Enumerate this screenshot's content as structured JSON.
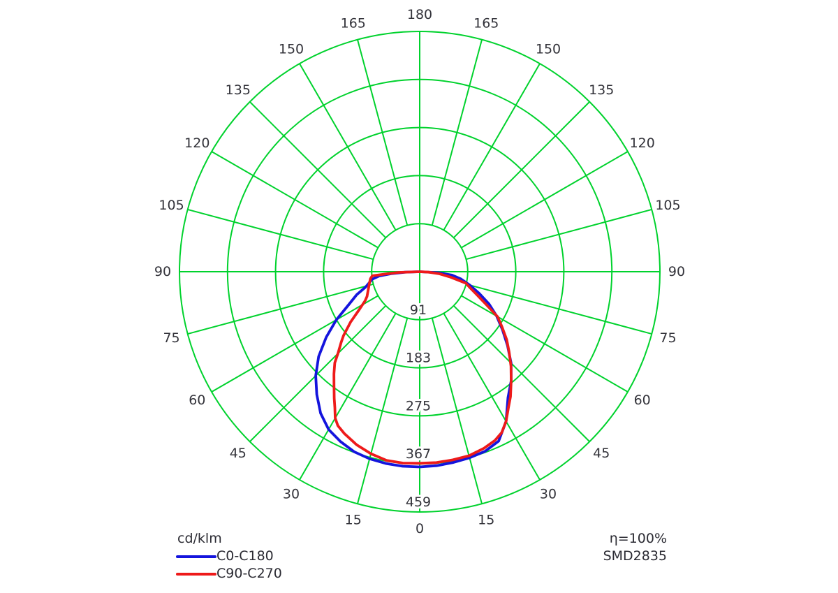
{
  "legend": {
    "unit_label": "cd/klm",
    "items": [
      {
        "label": "C0-C180",
        "color": "#1414dd"
      },
      {
        "label": "C90-C270",
        "color": "#ee1a1a"
      }
    ]
  },
  "footer_right": {
    "line1": "η=100%",
    "line2": "SMD2835"
  },
  "chart_data": {
    "type": "polar-photometric",
    "title": "",
    "unit": "cd/klm",
    "grid_color": "#00d22d",
    "label_color": "#33333a",
    "grid_on": true,
    "legend_position": "bottom-left",
    "angle_step_deg": 15,
    "angle_labels": [
      0,
      15,
      30,
      45,
      60,
      75,
      90,
      105,
      120,
      135,
      150,
      165,
      180
    ],
    "ring_values": [
      91,
      183,
      275,
      367,
      459
    ],
    "radial_max": 459,
    "center": {
      "x": 601,
      "y": 389
    },
    "outer_radius_px": 344,
    "angle_label_radius_px": 368,
    "series": [
      {
        "name": "C0-C180",
        "color": "#1414dd",
        "points": [
          [
            -90,
            0
          ],
          [
            -88,
            28
          ],
          [
            -86,
            55
          ],
          [
            -84,
            78
          ],
          [
            -81,
            92
          ],
          [
            -78,
            98
          ],
          [
            -74,
            108
          ],
          [
            -70,
            128
          ],
          [
            -65,
            150
          ],
          [
            -60,
            184
          ],
          [
            -55,
            218
          ],
          [
            -50,
            252
          ],
          [
            -45,
            281
          ],
          [
            -40,
            306
          ],
          [
            -35,
            330
          ],
          [
            -30,
            348
          ],
          [
            -25,
            358
          ],
          [
            -20,
            366
          ],
          [
            -15,
            370
          ],
          [
            -10,
            372
          ],
          [
            -5,
            373
          ],
          [
            0,
            373
          ],
          [
            5,
            372
          ],
          [
            10,
            370
          ],
          [
            15,
            368
          ],
          [
            20,
            365
          ],
          [
            25,
            357
          ],
          [
            30,
            330
          ],
          [
            35,
            294
          ],
          [
            40,
            272
          ],
          [
            45,
            247
          ],
          [
            50,
            219
          ],
          [
            55,
            193
          ],
          [
            60,
            170
          ],
          [
            65,
            146
          ],
          [
            70,
            121
          ],
          [
            75,
            99
          ],
          [
            80,
            80
          ],
          [
            84,
            62
          ],
          [
            87,
            35
          ],
          [
            90,
            0
          ]
        ]
      },
      {
        "name": "C90-C270",
        "color": "#ee1a1a",
        "points": [
          [
            -90,
            0
          ],
          [
            -88,
            40
          ],
          [
            -86,
            70
          ],
          [
            -85,
            91
          ],
          [
            -82,
            95
          ],
          [
            -78,
            98
          ],
          [
            -74,
            101
          ],
          [
            -70,
            105
          ],
          [
            -65,
            111
          ],
          [
            -62,
            118
          ],
          [
            -58,
            136
          ],
          [
            -54,
            163
          ],
          [
            -50,
            190
          ],
          [
            -48,
            202
          ],
          [
            -45,
            221
          ],
          [
            -43,
            238
          ],
          [
            -40,
            255
          ],
          [
            -37,
            272
          ],
          [
            -34,
            292
          ],
          [
            -32,
            306
          ],
          [
            -30,
            323
          ],
          [
            -28,
            333
          ],
          [
            -25,
            341
          ],
          [
            -20,
            352
          ],
          [
            -15,
            360
          ],
          [
            -10,
            366
          ],
          [
            -5,
            367
          ],
          [
            0,
            366
          ],
          [
            5,
            366
          ],
          [
            10,
            365
          ],
          [
            15,
            364
          ],
          [
            20,
            359
          ],
          [
            24,
            353
          ],
          [
            27,
            345
          ],
          [
            30,
            330
          ],
          [
            33,
            311
          ],
          [
            36,
            295
          ],
          [
            40,
            272
          ],
          [
            44,
            251
          ],
          [
            48,
            230
          ],
          [
            52,
            211
          ],
          [
            56,
            190
          ],
          [
            60,
            172
          ],
          [
            64,
            140
          ],
          [
            68,
            118
          ],
          [
            72,
            102
          ],
          [
            76,
            91
          ],
          [
            80,
            60
          ],
          [
            84,
            38
          ],
          [
            87,
            18
          ],
          [
            90,
            0
          ]
        ]
      }
    ]
  }
}
